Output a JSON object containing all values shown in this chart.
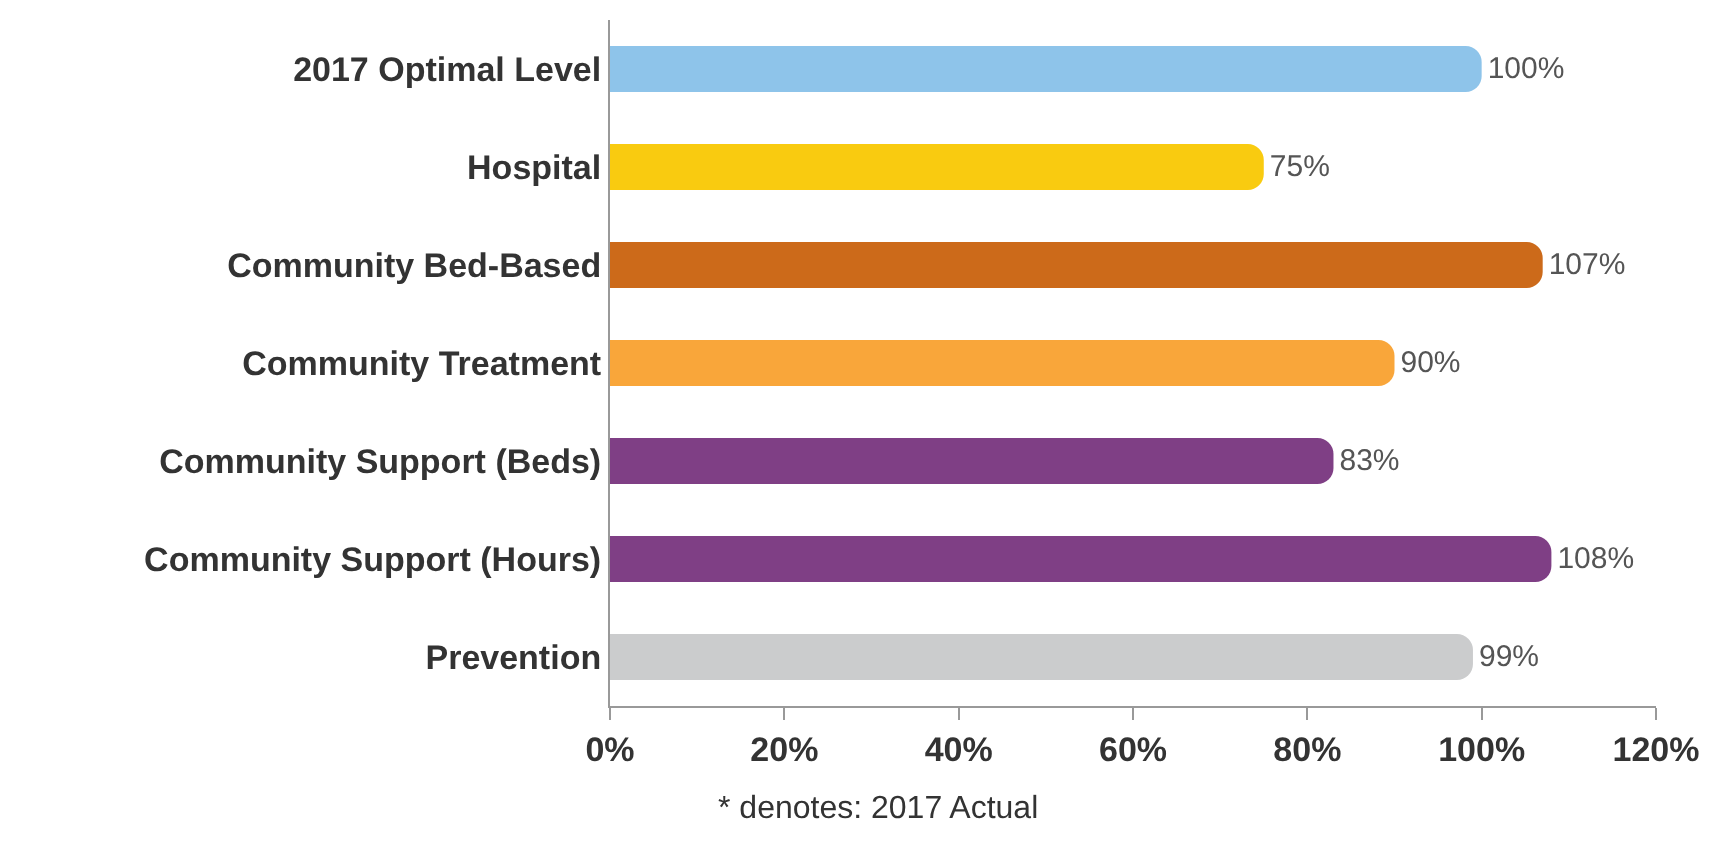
{
  "chart_data": {
    "type": "bar",
    "orientation": "horizontal",
    "categories": [
      "2017 Optimal Level",
      "Hospital",
      "Community Bed-Based",
      "Community Treatment",
      "Community Support (Beds)",
      "Community Support (Hours)",
      "Prevention"
    ],
    "values": [
      100,
      75,
      107,
      90,
      83,
      108,
      99
    ],
    "colors": [
      "#8ec4ea",
      "#f9cb10",
      "#cc6a1a",
      "#f9a63a",
      "#7f3f85",
      "#7f3f85",
      "#cbcccd"
    ],
    "value_labels": [
      "100%",
      "75%",
      "107%",
      "90%",
      "83%",
      "108%",
      "99%"
    ],
    "xlim": [
      0,
      120
    ],
    "xticks": [
      {
        "value": 0,
        "label": "0%"
      },
      {
        "value": 20,
        "label": "20%"
      },
      {
        "value": 40,
        "label": "40%"
      },
      {
        "value": 60,
        "label": "60%"
      },
      {
        "value": 80,
        "label": "80%"
      },
      {
        "value": 100,
        "label": "100%"
      },
      {
        "value": 120,
        "label": "120%"
      }
    ],
    "legend": false,
    "annotations": [
      "* denotes: 2017 Actual"
    ]
  }
}
